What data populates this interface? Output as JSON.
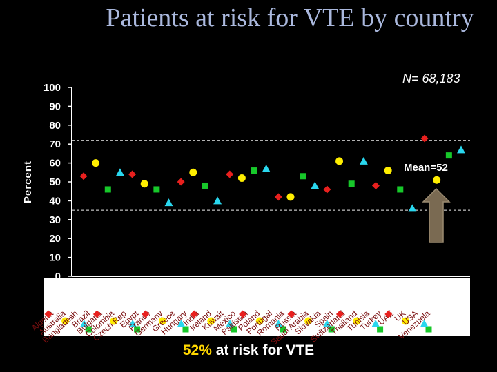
{
  "title": "Patients at risk for VTE by country",
  "n_label": "N= 68,183",
  "footer": {
    "highlight": "52%",
    "rest": " at risk for VTE"
  },
  "colors": {
    "red": "#e8201e",
    "yellow": "#ffee00",
    "green": "#17c82a",
    "cyan": "#29d7ee",
    "title": "#aab8dd",
    "arrow": "#7a6a52"
  },
  "chart_data": {
    "type": "scatter",
    "title": "Patients at risk for VTE by country",
    "ylabel": "Percent",
    "xlabel": "",
    "ylim": [
      0,
      100
    ],
    "yticks": [
      0,
      10,
      20,
      30,
      40,
      50,
      60,
      70,
      80,
      90,
      100
    ],
    "grid": false,
    "mean_label": "Mean=52",
    "mean_value": 52,
    "bounds": [
      72,
      35
    ],
    "categories": [
      "Algeria",
      "Australia",
      "Bangladesh",
      "Brazil",
      "Bulgaria",
      "Colombia",
      "Czech Rep",
      "Egypt",
      "France",
      "Germany",
      "Greece",
      "Hungary",
      "India",
      "Ireland",
      "Kuwait",
      "Mexico",
      "Pakistan",
      "Poland",
      "Portugal",
      "Romania",
      "Russia",
      "Saudi Arabia",
      "Slovakia",
      "Spain",
      "Switzerland",
      "Thailand",
      "Tunisia",
      "Turkey",
      "UAE",
      "UK",
      "USA",
      "Venezuela"
    ],
    "marker_cycle": [
      "diamond",
      "circle",
      "square",
      "triangle"
    ],
    "values": [
      53,
      60,
      46,
      55,
      54,
      49,
      46,
      39,
      50,
      55,
      48,
      40,
      54,
      52,
      56,
      57,
      42,
      42,
      53,
      48,
      46,
      61,
      49,
      61,
      48,
      56,
      46,
      36,
      73,
      51,
      64,
      67
    ]
  }
}
